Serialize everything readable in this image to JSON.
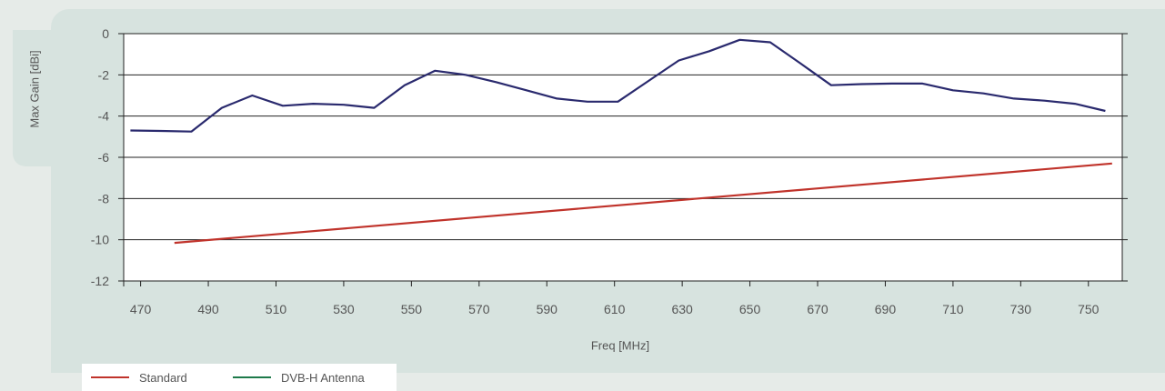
{
  "chart_data": {
    "type": "line",
    "title": "",
    "xlabel": "Freq [MHz]",
    "ylabel": "Max Gain  [dBi]",
    "xlim": [
      465,
      760
    ],
    "ylim": [
      -12,
      0
    ],
    "x_ticks": [
      470,
      490,
      510,
      530,
      550,
      570,
      590,
      610,
      630,
      650,
      670,
      690,
      710,
      730,
      750
    ],
    "y_ticks": [
      0,
      -2,
      -4,
      -6,
      -8,
      -10,
      -12
    ],
    "grid": "horizontal",
    "legend_position": "bottom-left",
    "series": [
      {
        "name": "Standard",
        "color": "#c0332b",
        "x": [
          480,
          757
        ],
        "y": [
          -10.15,
          -6.3
        ]
      },
      {
        "name": "DVB-H Antenna",
        "legend_color": "#1e7a4a",
        "color": "#2a2a6e",
        "x": [
          467,
          476,
          485,
          494,
          503,
          512,
          521,
          530,
          539,
          548,
          557,
          566,
          575,
          584,
          593,
          602,
          611,
          620,
          629,
          638,
          647,
          656,
          665,
          674,
          683,
          692,
          701,
          710,
          719,
          728,
          737,
          746,
          755
        ],
        "y": [
          -4.7,
          -4.72,
          -4.75,
          -3.6,
          -3.0,
          -3.5,
          -3.4,
          -3.45,
          -3.6,
          -2.5,
          -1.8,
          -2.0,
          -2.35,
          -2.75,
          -3.15,
          -3.3,
          -3.3,
          -2.3,
          -1.3,
          -0.85,
          -0.3,
          -0.42,
          -1.45,
          -2.5,
          -2.45,
          -2.42,
          -2.42,
          -2.75,
          -2.9,
          -3.15,
          -3.25,
          -3.4,
          -3.75
        ]
      }
    ]
  }
}
